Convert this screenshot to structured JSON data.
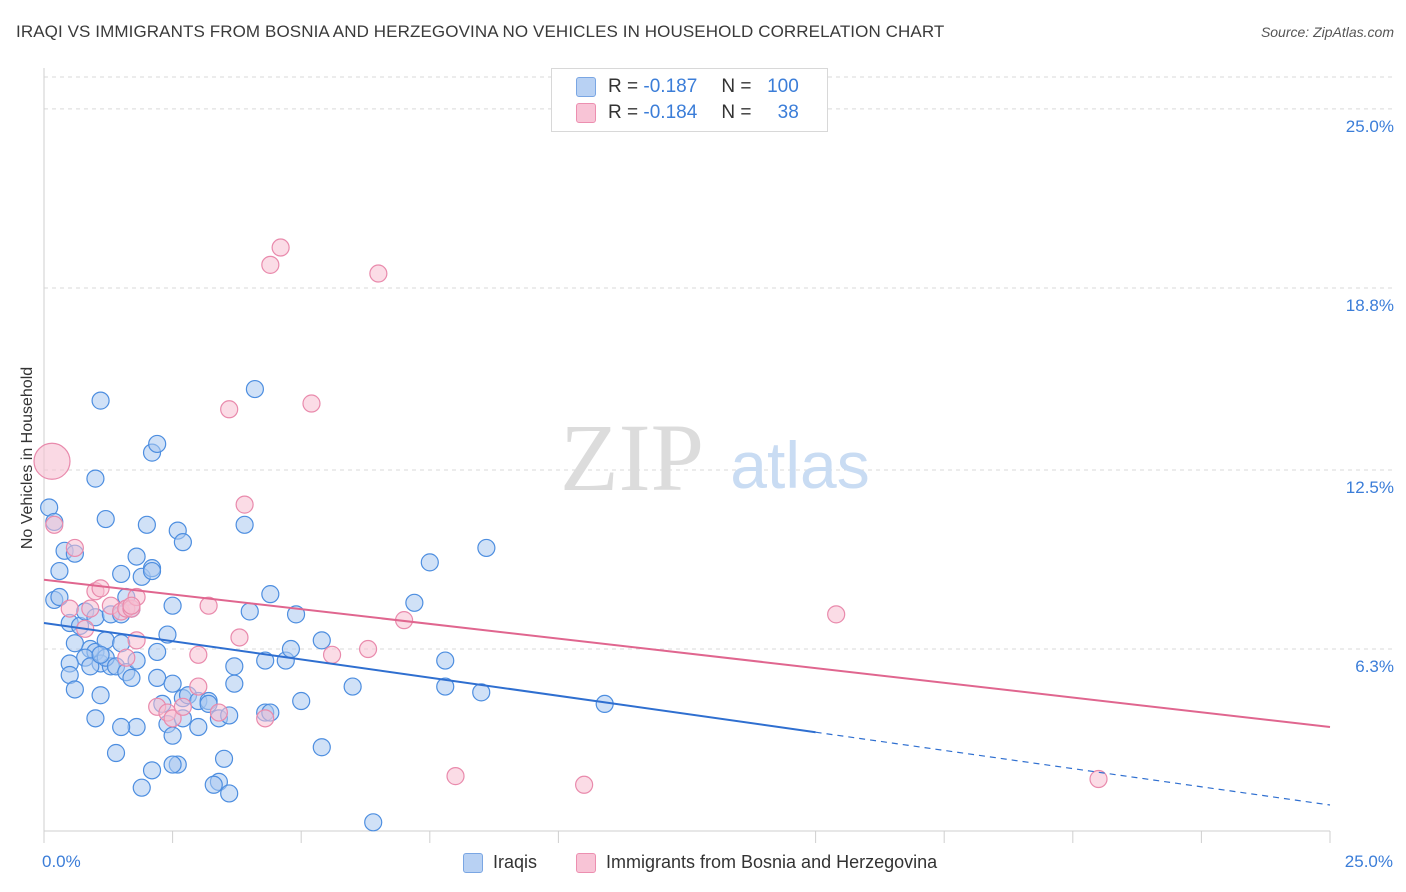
{
  "header": {
    "title": "IRAQI VS IMMIGRANTS FROM BOSNIA AND HERZEGOVINA NO VEHICLES IN HOUSEHOLD CORRELATION CHART",
    "source": "Source: ZipAtlas.com"
  },
  "watermark": {
    "zip": "ZIP",
    "atlas": "atlas"
  },
  "legend_top": {
    "rows": [
      {
        "r_label": "R =",
        "r_value": "-0.187",
        "n_label": "N =",
        "n_value": "100",
        "color": "#b8d1f3"
      },
      {
        "r_label": "R =",
        "r_value": "-0.184",
        "n_label": "N =",
        "n_value": "38",
        "color": "#f8c4d6"
      }
    ]
  },
  "legend_bottom": {
    "items": [
      {
        "label": "Iraqis",
        "color": "#b8d1f3"
      },
      {
        "label": "Immigrants from Bosnia and Herzegovina",
        "color": "#f8c4d6"
      }
    ]
  },
  "colors": {
    "blue_fill": "#aac8f0",
    "blue_stroke": "#4d8ee0",
    "blue_line": "#2f6fd0",
    "pink_fill": "#f7bfd2",
    "pink_stroke": "#e98aac",
    "pink_line": "#e0668f",
    "grid": "#d9d9d9",
    "tick_text": "#3b7dd8"
  },
  "chart_data": {
    "type": "scatter",
    "title": "IRAQI VS IMMIGRANTS FROM BOSNIA AND HERZEGOVINA NO VEHICLES IN HOUSEHOLD CORRELATION CHART",
    "xlabel": "",
    "ylabel": "No Vehicles in Household",
    "xlim": [
      0,
      25
    ],
    "ylim": [
      0,
      26
    ],
    "y_ticks": [
      {
        "value": 6.3,
        "label": "6.3%"
      },
      {
        "value": 12.5,
        "label": "12.5%"
      },
      {
        "value": 18.8,
        "label": "18.8%"
      },
      {
        "value": 25.0,
        "label": "25.0%"
      }
    ],
    "x_tick_labels": [
      {
        "value": 0,
        "label": "0.0%"
      },
      {
        "value": 25,
        "label": "25.0%"
      }
    ],
    "series": [
      {
        "name": "Iraqis",
        "color": "#aac8f0",
        "trend": {
          "x_start": 0,
          "y_start": 7.2,
          "x_solid_end": 15.0,
          "x_end": 25,
          "y_end": 0.9
        },
        "points": [
          [
            0.1,
            11.2
          ],
          [
            0.2,
            10.7
          ],
          [
            0.3,
            9.0
          ],
          [
            0.2,
            8.0
          ],
          [
            0.4,
            9.7
          ],
          [
            0.6,
            9.6
          ],
          [
            0.3,
            8.1
          ],
          [
            0.5,
            7.2
          ],
          [
            0.7,
            7.1
          ],
          [
            0.6,
            6.5
          ],
          [
            0.9,
            6.3
          ],
          [
            1.0,
            6.2
          ],
          [
            1.2,
            6.6
          ],
          [
            0.8,
            6.0
          ],
          [
            0.5,
            5.8
          ],
          [
            1.1,
            5.8
          ],
          [
            0.9,
            5.7
          ],
          [
            1.3,
            5.7
          ],
          [
            1.2,
            6.0
          ],
          [
            1.4,
            5.7
          ],
          [
            0.5,
            5.4
          ],
          [
            0.8,
            7.6
          ],
          [
            1.0,
            7.4
          ],
          [
            1.3,
            7.5
          ],
          [
            0.6,
            4.9
          ],
          [
            1.1,
            4.7
          ],
          [
            1.0,
            3.9
          ],
          [
            1.2,
            10.8
          ],
          [
            1.0,
            12.2
          ],
          [
            1.1,
            14.9
          ],
          [
            1.5,
            8.9
          ],
          [
            1.6,
            8.1
          ],
          [
            1.7,
            7.7
          ],
          [
            1.8,
            9.5
          ],
          [
            1.5,
            7.5
          ],
          [
            1.5,
            6.5
          ],
          [
            1.6,
            5.5
          ],
          [
            1.7,
            5.3
          ],
          [
            1.8,
            5.9
          ],
          [
            1.9,
            8.8
          ],
          [
            1.8,
            3.6
          ],
          [
            1.5,
            3.6
          ],
          [
            1.4,
            2.7
          ],
          [
            2.1,
            9.1
          ],
          [
            2.1,
            9.0
          ],
          [
            2.0,
            10.6
          ],
          [
            2.1,
            13.1
          ],
          [
            2.2,
            13.4
          ],
          [
            2.2,
            6.2
          ],
          [
            2.2,
            5.3
          ],
          [
            2.4,
            6.8
          ],
          [
            2.5,
            7.8
          ],
          [
            2.6,
            10.4
          ],
          [
            2.7,
            10.0
          ],
          [
            2.5,
            5.1
          ],
          [
            2.3,
            4.4
          ],
          [
            2.4,
            3.7
          ],
          [
            2.5,
            3.3
          ],
          [
            2.6,
            2.3
          ],
          [
            2.5,
            2.3
          ],
          [
            2.7,
            4.6
          ],
          [
            2.8,
            4.7
          ],
          [
            2.1,
            2.1
          ],
          [
            1.9,
            1.5
          ],
          [
            3.0,
            4.5
          ],
          [
            3.2,
            4.5
          ],
          [
            3.4,
            3.9
          ],
          [
            3.6,
            4.0
          ],
          [
            3.7,
            5.1
          ],
          [
            3.7,
            5.7
          ],
          [
            3.9,
            10.6
          ],
          [
            4.0,
            7.6
          ],
          [
            4.1,
            15.3
          ],
          [
            4.3,
            5.9
          ],
          [
            4.3,
            4.1
          ],
          [
            4.4,
            4.1
          ],
          [
            3.5,
            2.5
          ],
          [
            3.4,
            1.7
          ],
          [
            3.6,
            1.3
          ],
          [
            3.3,
            1.6
          ],
          [
            4.4,
            8.2
          ],
          [
            4.7,
            5.9
          ],
          [
            4.8,
            6.3
          ],
          [
            4.9,
            7.5
          ],
          [
            5.0,
            4.5
          ],
          [
            5.4,
            6.6
          ],
          [
            5.4,
            2.9
          ],
          [
            6.0,
            5.0
          ],
          [
            6.4,
            0.3
          ],
          [
            7.2,
            7.9
          ],
          [
            7.5,
            9.3
          ],
          [
            7.8,
            5.9
          ],
          [
            7.8,
            5.0
          ],
          [
            8.5,
            4.8
          ],
          [
            8.6,
            9.8
          ],
          [
            10.9,
            4.4
          ],
          [
            3.0,
            3.6
          ],
          [
            2.7,
            3.9
          ],
          [
            3.2,
            4.4
          ],
          [
            1.1,
            6.1
          ]
        ]
      },
      {
        "name": "Immigrants from Bosnia and Herzegovina",
        "color": "#f7bfd2",
        "trend": {
          "x_start": 0,
          "y_start": 8.7,
          "x_solid_end": 25,
          "x_end": 25,
          "y_end": 3.6
        },
        "points": [
          [
            0.2,
            10.6
          ],
          [
            0.6,
            9.8
          ],
          [
            0.5,
            7.7
          ],
          [
            0.8,
            7.0
          ],
          [
            1.0,
            8.3
          ],
          [
            1.1,
            8.4
          ],
          [
            1.3,
            7.8
          ],
          [
            1.5,
            7.6
          ],
          [
            1.6,
            7.7
          ],
          [
            1.7,
            7.7
          ],
          [
            1.8,
            8.1
          ],
          [
            1.8,
            6.6
          ],
          [
            1.6,
            6.0
          ],
          [
            2.2,
            4.3
          ],
          [
            2.4,
            4.1
          ],
          [
            2.5,
            3.9
          ],
          [
            2.7,
            4.3
          ],
          [
            3.0,
            5.0
          ],
          [
            3.0,
            6.1
          ],
          [
            3.2,
            7.8
          ],
          [
            3.4,
            4.1
          ],
          [
            3.6,
            14.6
          ],
          [
            3.8,
            6.7
          ],
          [
            3.9,
            11.3
          ],
          [
            4.3,
            3.9
          ],
          [
            4.4,
            19.6
          ],
          [
            4.6,
            20.2
          ],
          [
            5.2,
            14.8
          ],
          [
            5.6,
            6.1
          ],
          [
            6.3,
            6.3
          ],
          [
            6.5,
            19.3
          ],
          [
            7.0,
            7.3
          ],
          [
            8.0,
            1.9
          ],
          [
            10.5,
            1.6
          ],
          [
            15.4,
            7.5
          ],
          [
            20.5,
            1.8
          ],
          [
            0.9,
            7.7
          ],
          [
            1.7,
            7.8
          ]
        ],
        "large_point": [
          0.0,
          12.8
        ]
      }
    ]
  }
}
